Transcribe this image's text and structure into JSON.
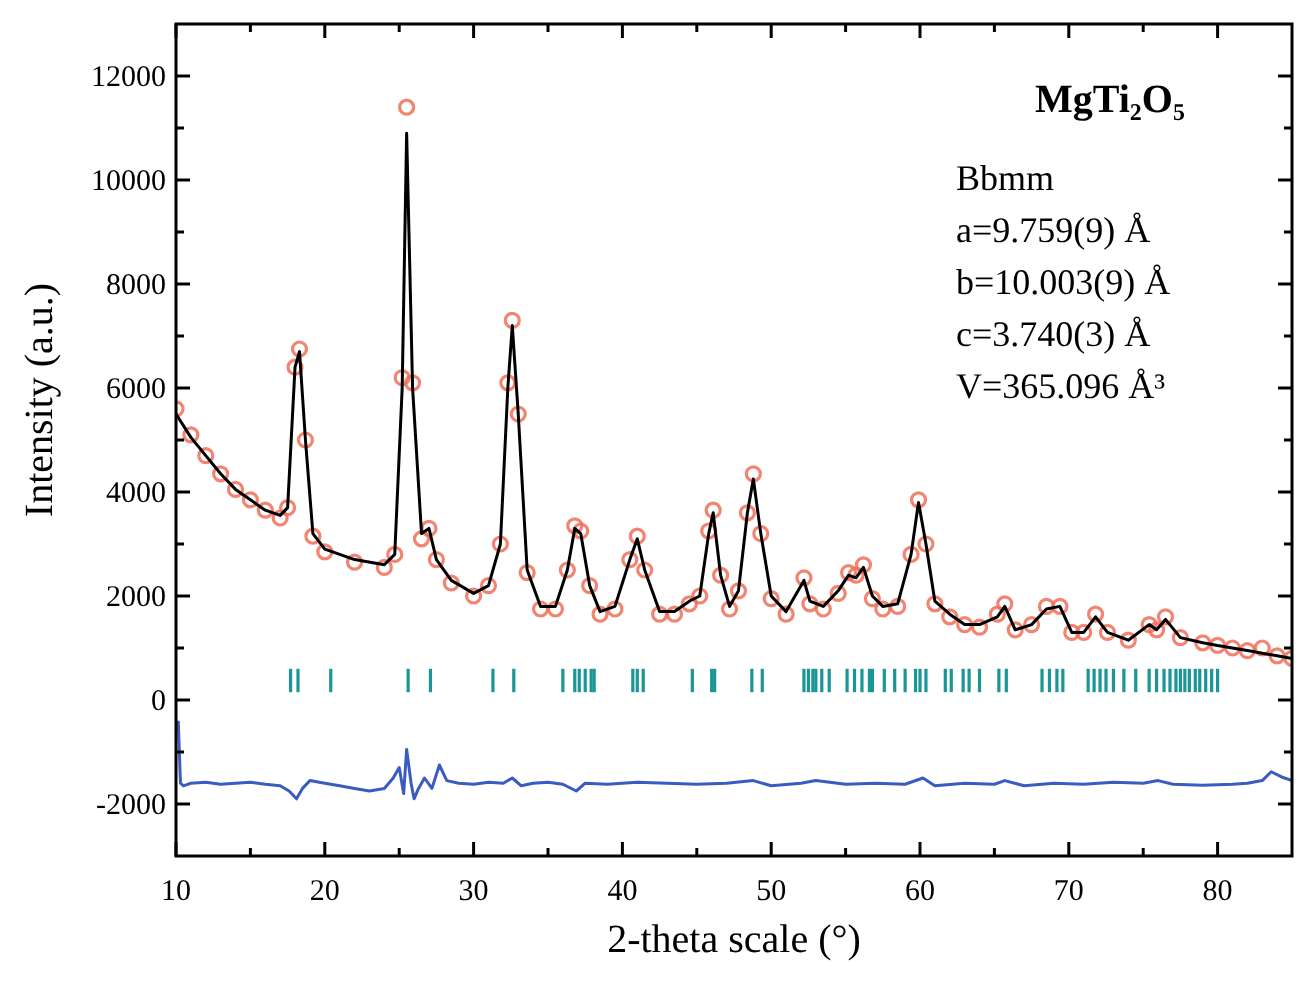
{
  "chart_data": {
    "type": "scatter",
    "title": "MgTi₂O₅",
    "xlabel": "2-theta scale (°)",
    "ylabel": "Intensity (a.u.)",
    "annotations": [
      "Bbmm",
      "a=9.759(9) Å",
      "b=10.003(9) Å",
      "c=3.740(3) Å",
      "V=365.096 Å³"
    ],
    "xlim": [
      10,
      85
    ],
    "ylim": [
      -3000,
      13000
    ],
    "xticks": [
      10,
      {
        "value": 15,
        "label": null
      },
      20,
      {
        "value": 25,
        "label": null
      },
      30,
      {
        "value": 35,
        "label": null
      },
      40,
      {
        "value": 45,
        "label": null
      },
      50,
      {
        "value": 55,
        "label": null
      },
      60,
      {
        "value": 65,
        "label": null
      },
      70,
      {
        "value": 75,
        "label": null
      },
      80
    ],
    "yticks": [
      -2000,
      {
        "value": -1000,
        "label": null
      },
      0,
      {
        "value": 1000,
        "label": null
      },
      2000,
      {
        "value": 3000,
        "label": null
      },
      4000,
      {
        "value": 5000,
        "label": null
      },
      6000,
      {
        "value": 7000,
        "label": null
      },
      8000,
      {
        "value": 9000,
        "label": null
      },
      10000,
      {
        "value": 11000,
        "label": null
      },
      12000
    ],
    "grid": false,
    "series": [
      {
        "marker": "circle",
        "color": "#f07058",
        "x": [
          10,
          11,
          12,
          13,
          14,
          15,
          16,
          17,
          17.5,
          18,
          18.3,
          18.7,
          19.2,
          20,
          22,
          24,
          24.7,
          25.2,
          25.5,
          25.9,
          26.5,
          27,
          27.5,
          28.5,
          30,
          31,
          31.8,
          32.3,
          32.6,
          33,
          33.6,
          34.5,
          35.5,
          36.3,
          36.8,
          37.2,
          37.8,
          38.5,
          39.5,
          40.5,
          41,
          41.5,
          42.5,
          43.5,
          44.5,
          45.2,
          45.8,
          46.1,
          46.6,
          47.2,
          47.8,
          48.4,
          48.8,
          49.3,
          50,
          51,
          52.2,
          52.6,
          53.5,
          54.5,
          55.2,
          55.7,
          56.2,
          56.8,
          57.5,
          58.5,
          59.4,
          59.9,
          60.4,
          61,
          62,
          63,
          64,
          65.2,
          65.7,
          66.4,
          67.5,
          68.5,
          69.4,
          70.2,
          71,
          71.8,
          72.6,
          74,
          75.4,
          75.9,
          76.5,
          77.5,
          79,
          80,
          81,
          82,
          83,
          84,
          85
        ],
        "values": [
          5600,
          5100,
          4700,
          4350,
          4050,
          3850,
          3650,
          3500,
          3700,
          6400,
          6750,
          5000,
          3150,
          2850,
          2650,
          2550,
          2800,
          6200,
          11400,
          6100,
          3100,
          3300,
          2700,
          2250,
          2000,
          2200,
          3000,
          6100,
          7300,
          5500,
          2450,
          1750,
          1750,
          2500,
          3350,
          3250,
          2200,
          1650,
          1750,
          2700,
          3150,
          2500,
          1650,
          1650,
          1850,
          2000,
          3250,
          3650,
          2400,
          1750,
          2100,
          3600,
          4350,
          3200,
          1950,
          1650,
          2350,
          1850,
          1750,
          2050,
          2450,
          2400,
          2600,
          1950,
          1750,
          1800,
          2800,
          3850,
          3000,
          1850,
          1600,
          1450,
          1400,
          1650,
          1850,
          1350,
          1450,
          1800,
          1800,
          1300,
          1300,
          1650,
          1300,
          1150,
          1450,
          1350,
          1600,
          1200,
          1100,
          1050,
          1000,
          950,
          1000,
          850,
          800
        ]
      },
      {
        "type": "line",
        "color": "#000000",
        "x": [
          10,
          11,
          12,
          13,
          14,
          15,
          16,
          17,
          17.5,
          18,
          18.3,
          18.7,
          19.2,
          20,
          22,
          24,
          24.7,
          25.2,
          25.5,
          25.9,
          26.5,
          27,
          27.5,
          28.5,
          30,
          31,
          31.8,
          32.3,
          32.6,
          33,
          33.6,
          34.5,
          35.5,
          36.3,
          36.8,
          37.2,
          37.8,
          38.5,
          39.5,
          40.5,
          41,
          41.5,
          42.5,
          43.5,
          44.5,
          45.2,
          45.8,
          46.1,
          46.6,
          47.2,
          47.8,
          48.4,
          48.8,
          49.3,
          50,
          51,
          52.2,
          52.6,
          53.5,
          54.5,
          55.2,
          55.7,
          56.2,
          56.8,
          57.5,
          58.5,
          59.4,
          59.9,
          60.4,
          61,
          62,
          63,
          64,
          65.2,
          65.7,
          66.4,
          67.5,
          68.5,
          69.4,
          70.2,
          71,
          71.8,
          72.6,
          74,
          75.4,
          75.9,
          76.5,
          77.5,
          79,
          80,
          81,
          82,
          83,
          84,
          85
        ],
        "values": [
          5500,
          5050,
          4700,
          4350,
          4050,
          3850,
          3650,
          3550,
          3700,
          6400,
          6700,
          5000,
          3200,
          2900,
          2700,
          2600,
          2800,
          6000,
          10900,
          6000,
          3200,
          3300,
          2700,
          2300,
          2050,
          2200,
          3000,
          6000,
          7200,
          5500,
          2500,
          1800,
          1800,
          2500,
          3300,
          3200,
          2200,
          1700,
          1800,
          2700,
          3100,
          2500,
          1700,
          1700,
          1900,
          2000,
          3200,
          3600,
          2400,
          1800,
          2100,
          3600,
          4250,
          3200,
          2000,
          1700,
          2300,
          1900,
          1800,
          2100,
          2400,
          2350,
          2550,
          2000,
          1800,
          1850,
          2800,
          3800,
          3000,
          1900,
          1650,
          1450,
          1450,
          1600,
          1800,
          1350,
          1450,
          1750,
          1800,
          1300,
          1300,
          1600,
          1300,
          1150,
          1450,
          1350,
          1550,
          1200,
          1100,
          1050,
          1000,
          950,
          900,
          850,
          800
        ]
      },
      {
        "type": "bar",
        "color": "#1a9696",
        "x": [
          17.7,
          18.2,
          20.4,
          25.6,
          27.1,
          31.3,
          32.7,
          36.0,
          36.8,
          37.1,
          37.5,
          37.9,
          38.1,
          40.7,
          41.0,
          41.4,
          44.7,
          46.0,
          46.2,
          48.7,
          49.4,
          52.2,
          52.5,
          52.8,
          53.0,
          53.4,
          53.9,
          55.1,
          55.6,
          56.1,
          56.6,
          56.8,
          57.6,
          58.3,
          59.0,
          59.7,
          60.0,
          60.4,
          61.7,
          62.1,
          62.9,
          63.3,
          64.0,
          65.3,
          65.8,
          68.2,
          68.7,
          69.2,
          69.6,
          71.3,
          71.7,
          72.1,
          72.5,
          73.0,
          73.7,
          74.5,
          75.4,
          75.9,
          76.4,
          76.8,
          77.2,
          77.5,
          77.8,
          78.1,
          78.5,
          78.8,
          79.2,
          79.6,
          80.0
        ],
        "base": [
          150,
          150,
          150,
          150,
          150,
          150,
          150,
          150,
          150,
          150,
          150,
          150,
          150,
          150,
          150,
          150,
          150,
          150,
          150,
          150,
          150,
          150,
          150,
          150,
          150,
          150,
          150,
          150,
          150,
          150,
          150,
          150,
          150,
          150,
          150,
          150,
          150,
          150,
          150,
          150,
          150,
          150,
          150,
          150,
          150,
          150,
          150,
          150,
          150,
          150,
          150,
          150,
          150,
          150,
          150,
          150,
          150,
          150,
          150,
          150,
          150,
          150,
          150,
          150,
          150,
          150,
          150,
          150,
          150
        ],
        "values": [
          450,
          450,
          450,
          450,
          450,
          450,
          450,
          450,
          450,
          450,
          450,
          450,
          450,
          450,
          450,
          450,
          450,
          450,
          450,
          450,
          450,
          450,
          450,
          450,
          450,
          450,
          450,
          450,
          450,
          450,
          450,
          450,
          450,
          450,
          450,
          450,
          450,
          450,
          450,
          450,
          450,
          450,
          450,
          450,
          450,
          450,
          450,
          450,
          450,
          450,
          450,
          450,
          450,
          450,
          450,
          450,
          450,
          450,
          450,
          450,
          450,
          450,
          450,
          450,
          450,
          450,
          450,
          450,
          450
        ]
      },
      {
        "type": "line",
        "color": "#3a5cc0",
        "x": [
          10.15,
          10.3,
          10.5,
          11,
          12,
          13,
          14,
          15,
          16,
          17,
          17.6,
          18.1,
          18.5,
          19,
          20,
          21,
          22,
          23,
          24,
          24.6,
          25,
          25.3,
          25.5,
          25.8,
          26,
          26.3,
          26.7,
          27.2,
          27.7,
          28.2,
          29,
          30,
          31,
          32,
          32.6,
          33.2,
          34,
          35,
          36,
          36.9,
          37.5,
          39,
          41,
          43,
          45,
          47,
          48.8,
          50,
          52,
          53,
          55,
          57,
          59,
          60.2,
          61,
          63,
          65,
          65.7,
          67,
          69,
          71,
          73,
          75,
          76,
          77,
          79,
          81,
          82,
          83,
          83.6,
          84.3,
          85
        ],
        "values": [
          -400,
          -1600,
          -1650,
          -1600,
          -1580,
          -1620,
          -1600,
          -1580,
          -1620,
          -1650,
          -1750,
          -1900,
          -1700,
          -1550,
          -1600,
          -1650,
          -1700,
          -1750,
          -1700,
          -1500,
          -1300,
          -1800,
          -950,
          -1600,
          -1900,
          -1700,
          -1500,
          -1700,
          -1250,
          -1550,
          -1600,
          -1620,
          -1580,
          -1600,
          -1500,
          -1650,
          -1600,
          -1580,
          -1620,
          -1750,
          -1600,
          -1620,
          -1580,
          -1600,
          -1620,
          -1600,
          -1550,
          -1650,
          -1600,
          -1550,
          -1620,
          -1600,
          -1620,
          -1500,
          -1650,
          -1600,
          -1620,
          -1550,
          -1650,
          -1600,
          -1620,
          -1580,
          -1600,
          -1550,
          -1620,
          -1640,
          -1620,
          -1600,
          -1550,
          -1380,
          -1480,
          -1550
        ]
      }
    ]
  }
}
